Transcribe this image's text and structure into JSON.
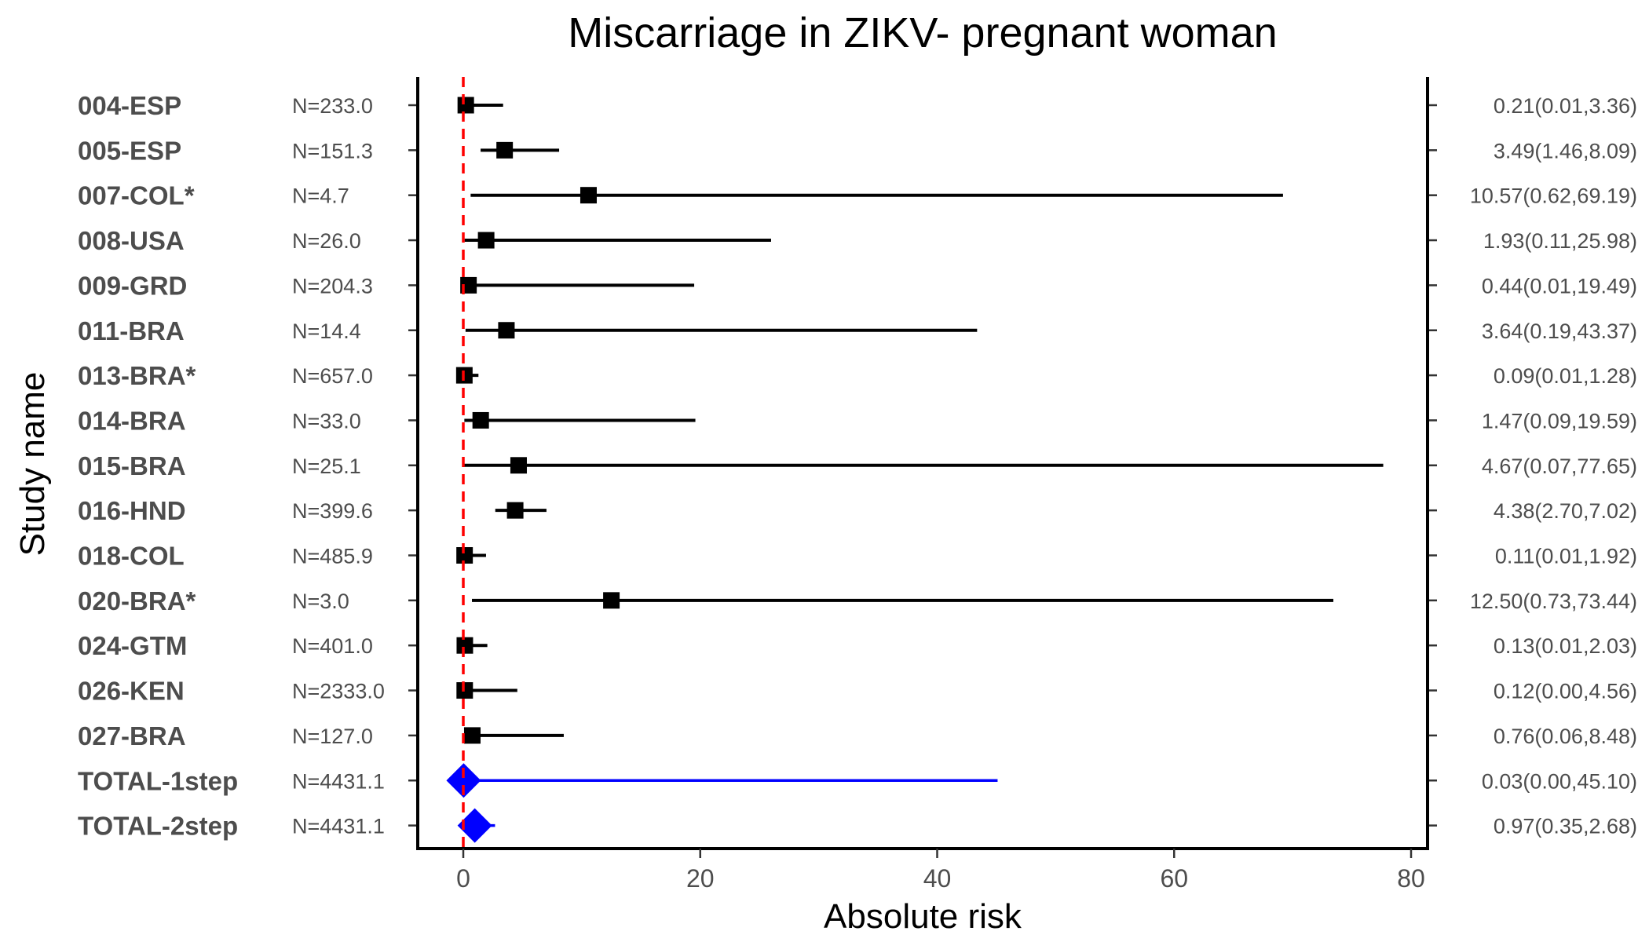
{
  "chart_data": {
    "type": "forest",
    "title": "Miscarriage in ZIKV- pregnant woman",
    "xlabel": "Absolute risk",
    "ylabel": "Study name",
    "xlim": [
      -5,
      81
    ],
    "xticks": [
      0,
      20,
      40,
      60,
      80
    ],
    "reference_line": 0,
    "colors": {
      "study": "#000000",
      "total": "#0000ff",
      "reference": "#ff0000"
    },
    "rows": [
      {
        "study": "004-ESP",
        "n": "N=233.0",
        "estimate": 0.21,
        "lower": 0.01,
        "upper": 3.36,
        "label": "0.21(0.01,3.36)",
        "kind": "study"
      },
      {
        "study": "005-ESP",
        "n": "N=151.3",
        "estimate": 3.49,
        "lower": 1.46,
        "upper": 8.09,
        "label": "3.49(1.46,8.09)",
        "kind": "study"
      },
      {
        "study": "007-COL*",
        "n": "N=4.7",
        "estimate": 10.57,
        "lower": 0.62,
        "upper": 69.19,
        "label": "10.57(0.62,69.19)",
        "kind": "study"
      },
      {
        "study": "008-USA",
        "n": "N=26.0",
        "estimate": 1.93,
        "lower": 0.11,
        "upper": 25.98,
        "label": "1.93(0.11,25.98)",
        "kind": "study"
      },
      {
        "study": "009-GRD",
        "n": "N=204.3",
        "estimate": 0.44,
        "lower": 0.01,
        "upper": 19.49,
        "label": "0.44(0.01,19.49)",
        "kind": "study"
      },
      {
        "study": "011-BRA",
        "n": "N=14.4",
        "estimate": 3.64,
        "lower": 0.19,
        "upper": 43.37,
        "label": "3.64(0.19,43.37)",
        "kind": "study"
      },
      {
        "study": "013-BRA*",
        "n": "N=657.0",
        "estimate": 0.09,
        "lower": 0.01,
        "upper": 1.28,
        "label": "0.09(0.01,1.28)",
        "kind": "study"
      },
      {
        "study": "014-BRA",
        "n": "N=33.0",
        "estimate": 1.47,
        "lower": 0.09,
        "upper": 19.59,
        "label": "1.47(0.09,19.59)",
        "kind": "study"
      },
      {
        "study": "015-BRA",
        "n": "N=25.1",
        "estimate": 4.67,
        "lower": 0.07,
        "upper": 77.65,
        "label": "4.67(0.07,77.65)",
        "kind": "study"
      },
      {
        "study": "016-HND",
        "n": "N=399.6",
        "estimate": 4.38,
        "lower": 2.7,
        "upper": 7.02,
        "label": "4.38(2.70,7.02)",
        "kind": "study"
      },
      {
        "study": "018-COL",
        "n": "N=485.9",
        "estimate": 0.11,
        "lower": 0.01,
        "upper": 1.92,
        "label": "0.11(0.01,1.92)",
        "kind": "study"
      },
      {
        "study": "020-BRA*",
        "n": "N=3.0",
        "estimate": 12.5,
        "lower": 0.73,
        "upper": 73.44,
        "label": "12.50(0.73,73.44)",
        "kind": "study"
      },
      {
        "study": "024-GTM",
        "n": "N=401.0",
        "estimate": 0.13,
        "lower": 0.01,
        "upper": 2.03,
        "label": "0.13(0.01,2.03)",
        "kind": "study"
      },
      {
        "study": "026-KEN",
        "n": "N=2333.0",
        "estimate": 0.12,
        "lower": 0.0,
        "upper": 4.56,
        "label": "0.12(0.00,4.56)",
        "kind": "study"
      },
      {
        "study": "027-BRA",
        "n": "N=127.0",
        "estimate": 0.76,
        "lower": 0.06,
        "upper": 8.48,
        "label": "0.76(0.06,8.48)",
        "kind": "study"
      },
      {
        "study": "TOTAL-1step",
        "n": "N=4431.1",
        "estimate": 0.03,
        "lower": 0.0,
        "upper": 45.1,
        "label": "0.03(0.00,45.10)",
        "kind": "total"
      },
      {
        "study": "TOTAL-2step",
        "n": "N=4431.1",
        "estimate": 0.97,
        "lower": 0.35,
        "upper": 2.68,
        "label": "0.97(0.35,2.68)",
        "kind": "total"
      }
    ]
  }
}
